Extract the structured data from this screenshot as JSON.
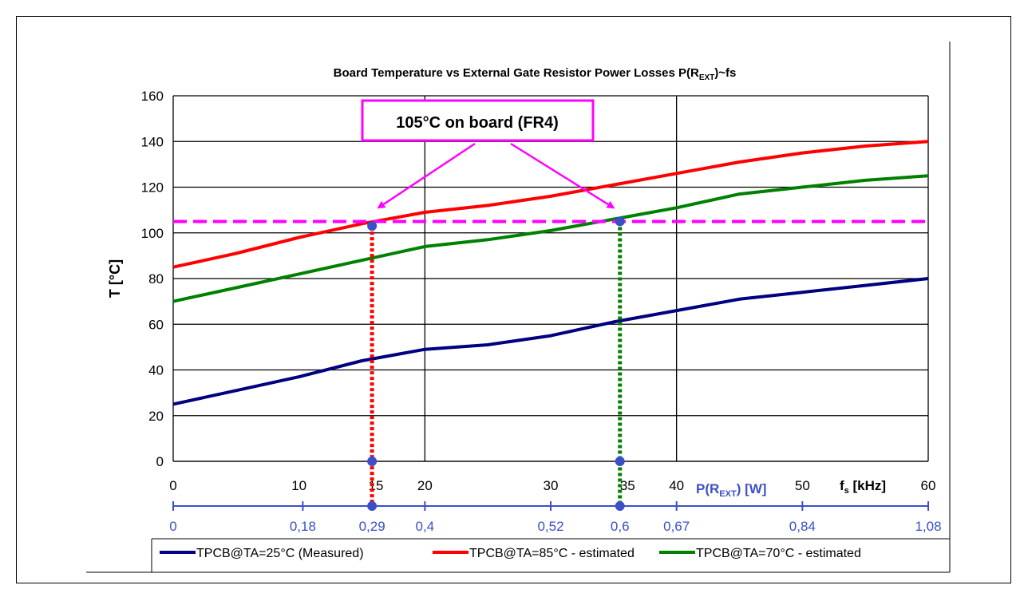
{
  "chart_data": {
    "type": "line",
    "title": "Board Temperature vs External Gate Resistor Power Losses P(R",
    "title_sub": "EXT",
    "title_tail": ")~fs",
    "ylabel": "T [°C]",
    "xlabel_main": "f",
    "xlabel_main_sub": "s",
    "xlabel_main_tail": " [kHz]",
    "xlabel_power": "P(R",
    "xlabel_power_sub": "EXT",
    "xlabel_power_tail": ") [W]",
    "ylim": [
      0,
      160
    ],
    "xlim": [
      0,
      60
    ],
    "yticks": [
      0,
      20,
      40,
      60,
      80,
      100,
      120,
      140,
      160
    ],
    "xticks": [
      0,
      10,
      15,
      20,
      30,
      35,
      40,
      50,
      60
    ],
    "xgrid": [
      20,
      40,
      60
    ],
    "power_ticks": [
      {
        "fs": 0,
        "label": "0"
      },
      {
        "fs": 10.3,
        "label": "0,18"
      },
      {
        "fs": 15.8,
        "label": "0,29"
      },
      {
        "fs": 20,
        "label": "0,4"
      },
      {
        "fs": 30,
        "label": "0,52"
      },
      {
        "fs": 35.5,
        "label": "0,6"
      },
      {
        "fs": 40,
        "label": "0,67"
      },
      {
        "fs": 50,
        "label": "0,84"
      },
      {
        "fs": 60,
        "label": "1,08"
      }
    ],
    "series": [
      {
        "name": "TPCB@TA=25°C (Measured)",
        "color": "#000080",
        "x": [
          0,
          5,
          10,
          15,
          20,
          25,
          30,
          35,
          40,
          45,
          50,
          55,
          60
        ],
        "y": [
          25,
          31,
          37,
          44,
          49,
          51,
          55,
          61,
          66,
          71,
          74,
          77,
          80
        ]
      },
      {
        "name": "TPCB@TA=85°C - estimated",
        "color": "#ff0000",
        "x": [
          0,
          5,
          10,
          15,
          20,
          25,
          30,
          35,
          40,
          45,
          50,
          55,
          60
        ],
        "y": [
          85,
          91,
          98,
          104,
          109,
          112,
          116,
          121,
          126,
          131,
          135,
          138,
          140
        ]
      },
      {
        "name": "TPCB@TA=70°C - estimated",
        "color": "#008000",
        "x": [
          0,
          5,
          10,
          15,
          20,
          25,
          30,
          35,
          40,
          45,
          50,
          55,
          60
        ],
        "y": [
          70,
          76,
          82,
          88,
          94,
          97,
          101,
          106,
          111,
          117,
          120,
          123,
          125
        ]
      }
    ],
    "threshold": {
      "y": 105,
      "color": "#ff00ff"
    },
    "annotation": {
      "text": "105°C on board (FR4)",
      "color": "#ff00ff"
    },
    "markers": [
      {
        "fs": 15.8,
        "y": 103,
        "color": "#ff0000"
      },
      {
        "fs": 35.5,
        "y": 105,
        "color": "#008000"
      }
    ],
    "marker_color": "#3b4fc8",
    "axis2_color": "#3b4fc8",
    "legend_position": "bottom"
  }
}
